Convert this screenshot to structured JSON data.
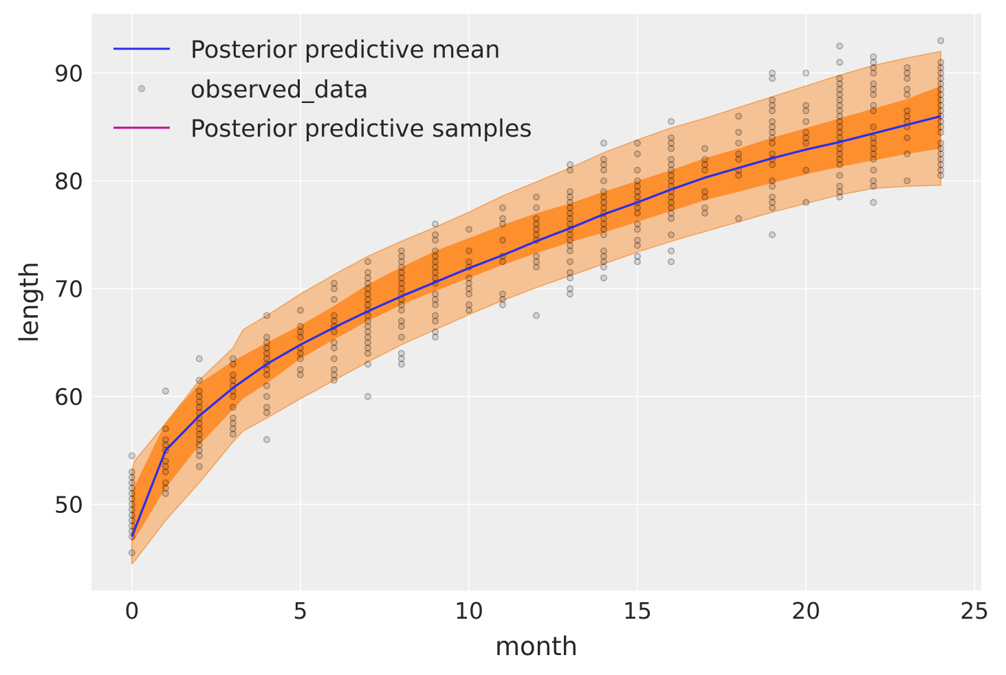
{
  "chart_data": {
    "type": "line",
    "title": "",
    "xlabel": "month",
    "ylabel": "length",
    "xlim": [
      -1.2,
      25.2
    ],
    "ylim": [
      42.0,
      95.5
    ],
    "xticks": [
      0,
      5,
      10,
      15,
      20,
      25
    ],
    "yticks": [
      50,
      60,
      70,
      80,
      90
    ],
    "grid": true,
    "legend_position": "top-left",
    "legend": {
      "mean_label": "Posterior predictive mean",
      "observed_label": "observed_data",
      "samples_label": "Posterior predictive samples"
    },
    "colors": {
      "background": "#eeeeee",
      "grid": "#ffffff",
      "mean": "#2a2eec",
      "samples": "#c10c90",
      "band_outer": "#f4bf8f",
      "band_inner": "#ff8a24",
      "observed": "#000000"
    },
    "band_x": [
      0,
      0.07,
      1,
      2,
      3,
      3.3,
      4,
      5,
      6,
      7,
      8,
      9,
      10,
      11,
      12,
      13,
      14,
      15,
      16,
      17,
      18,
      19,
      20,
      21,
      22,
      23,
      24
    ],
    "band_outer_lower": [
      44.5,
      44.7,
      48.5,
      52.0,
      55.8,
      56.8,
      58.0,
      59.8,
      61.5,
      63.2,
      64.8,
      66.2,
      67.6,
      68.9,
      70.1,
      71.2,
      72.3,
      73.4,
      74.4,
      75.3,
      76.2,
      77.1,
      77.9,
      78.7,
      79.3,
      79.5,
      79.6
    ],
    "band_inner_lower": [
      46.5,
      46.7,
      51.5,
      55.5,
      58.8,
      59.8,
      61.2,
      63.5,
      65.3,
      67.0,
      68.5,
      69.8,
      71.0,
      72.2,
      73.3,
      74.3,
      75.2,
      76.2,
      77.2,
      78.2,
      79.0,
      79.8,
      80.6,
      81.3,
      81.9,
      82.5,
      83.0
    ],
    "band_inner_upper": [
      51.0,
      51.6,
      57.6,
      61.2,
      63.3,
      63.8,
      65.0,
      66.6,
      68.4,
      70.4,
      72.0,
      73.5,
      74.7,
      75.9,
      77.0,
      77.9,
      79.0,
      80.0,
      81.0,
      82.1,
      83.0,
      84.0,
      84.9,
      85.8,
      86.7,
      87.6,
      88.8
    ],
    "band_outer_upper": [
      53.0,
      54.0,
      57.5,
      61.5,
      64.5,
      66.2,
      67.5,
      69.5,
      71.3,
      73.0,
      74.4,
      75.7,
      77.1,
      78.6,
      79.9,
      81.2,
      82.6,
      83.8,
      84.9,
      85.8,
      86.8,
      87.8,
      88.8,
      89.8,
      90.7,
      91.4,
      92.0
    ],
    "mean": {
      "x": [
        0,
        1,
        2,
        3,
        4,
        5,
        6,
        7,
        8,
        9,
        10,
        11,
        12,
        13,
        14,
        15,
        16,
        17,
        18,
        19,
        20,
        21,
        22,
        23,
        24
      ],
      "y": [
        47.0,
        55.0,
        58.2,
        60.8,
        63.0,
        64.8,
        66.4,
        67.9,
        69.3,
        70.6,
        71.9,
        73.1,
        74.4,
        75.6,
        76.9,
        78.0,
        79.2,
        80.3,
        81.2,
        82.1,
        82.9,
        83.6,
        84.4,
        85.2,
        86.0
      ]
    },
    "observed": [
      {
        "x": 0,
        "y": [
          45.5,
          47.0,
          47.5,
          48.0,
          48.5,
          49.0,
          49.5,
          50.0,
          50.5,
          51.0,
          51.5,
          52.0,
          52.5,
          53.0,
          54.5
        ]
      },
      {
        "x": 1,
        "y": [
          51.0,
          51.5,
          52.0,
          53.0,
          53.5,
          54.0,
          55.0,
          55.5,
          56.0,
          57.0,
          60.5
        ]
      },
      {
        "x": 2,
        "y": [
          53.5,
          54.5,
          55.0,
          55.5,
          56.0,
          56.5,
          57.0,
          57.5,
          58.0,
          58.5,
          59.0,
          59.5,
          60.0,
          60.5,
          61.5,
          63.5
        ]
      },
      {
        "x": 3,
        "y": [
          56.5,
          57.0,
          57.5,
          58.0,
          59.0,
          60.0,
          60.5,
          61.0,
          61.5,
          62.0,
          63.0,
          63.5
        ]
      },
      {
        "x": 4,
        "y": [
          56.0,
          58.5,
          59.0,
          60.0,
          61.0,
          62.0,
          62.5,
          63.0,
          63.5,
          64.0,
          64.5,
          65.0,
          65.5,
          67.5
        ]
      },
      {
        "x": 5,
        "y": [
          62.0,
          62.5,
          63.5,
          64.0,
          64.5,
          65.5,
          66.0,
          66.5,
          68.0
        ]
      },
      {
        "x": 6,
        "y": [
          61.5,
          62.0,
          62.5,
          63.5,
          64.5,
          65.0,
          66.0,
          66.5,
          67.0,
          67.5,
          69.0,
          70.0,
          70.5
        ]
      },
      {
        "x": 7,
        "y": [
          60.0,
          63.0,
          64.0,
          64.5,
          65.0,
          65.5,
          66.0,
          66.5,
          67.0,
          67.5,
          68.0,
          68.5,
          69.0,
          69.5,
          70.0,
          70.5,
          71.0,
          71.5,
          72.5
        ]
      },
      {
        "x": 8,
        "y": [
          63.0,
          63.5,
          64.0,
          65.5,
          66.5,
          67.0,
          68.0,
          68.5,
          69.0,
          69.5,
          70.0,
          70.5,
          71.0,
          71.5,
          72.0,
          72.5,
          73.0,
          73.5
        ]
      },
      {
        "x": 9,
        "y": [
          65.5,
          66.0,
          67.0,
          67.5,
          68.5,
          69.0,
          69.5,
          70.5,
          71.0,
          71.5,
          72.0,
          72.5,
          73.0,
          73.5,
          74.5,
          75.0,
          76.0
        ]
      },
      {
        "x": 10,
        "y": [
          68.0,
          68.5,
          69.5,
          70.0,
          70.5,
          71.0,
          72.0,
          72.5,
          73.5,
          75.5
        ]
      },
      {
        "x": 11,
        "y": [
          68.5,
          69.0,
          69.5,
          72.5,
          73.0,
          74.5,
          76.0,
          76.5,
          77.5
        ]
      },
      {
        "x": 12,
        "y": [
          67.5,
          72.0,
          72.5,
          73.0,
          74.5,
          75.0,
          75.5,
          76.0,
          76.5,
          77.5,
          78.5
        ]
      },
      {
        "x": 13,
        "y": [
          69.5,
          70.0,
          71.0,
          71.5,
          72.5,
          73.5,
          74.0,
          74.5,
          75.0,
          75.5,
          76.0,
          76.5,
          77.0,
          77.5,
          78.0,
          78.5,
          79.0,
          81.0,
          81.5
        ]
      },
      {
        "x": 14,
        "y": [
          71.0,
          72.0,
          72.5,
          73.0,
          73.5,
          75.0,
          75.5,
          76.0,
          76.5,
          77.0,
          77.5,
          78.0,
          78.5,
          79.0,
          80.0,
          81.0,
          81.5,
          82.0,
          83.5
        ]
      },
      {
        "x": 15,
        "y": [
          72.5,
          73.0,
          74.0,
          74.5,
          75.5,
          76.0,
          77.0,
          77.5,
          78.0,
          78.5,
          79.0,
          79.5,
          80.0,
          81.0,
          82.5,
          83.5
        ]
      },
      {
        "x": 16,
        "y": [
          72.5,
          73.5,
          75.0,
          76.5,
          77.0,
          77.5,
          78.0,
          78.5,
          79.0,
          79.5,
          80.0,
          80.5,
          81.0,
          81.5,
          82.0,
          83.0,
          83.5,
          84.0,
          85.5
        ]
      },
      {
        "x": 17,
        "y": [
          77.0,
          77.5,
          78.5,
          79.0,
          81.0,
          81.5,
          82.0,
          83.0
        ]
      },
      {
        "x": 18,
        "y": [
          76.5,
          80.5,
          81.0,
          82.0,
          82.5,
          83.5,
          84.5,
          86.0
        ]
      },
      {
        "x": 19,
        "y": [
          75.0,
          77.5,
          78.0,
          78.5,
          79.5,
          80.0,
          81.5,
          82.0,
          82.5,
          83.5,
          84.0,
          84.5,
          85.0,
          85.5,
          86.5,
          87.0,
          87.5,
          89.5,
          90.0
        ]
      },
      {
        "x": 20,
        "y": [
          78.0,
          81.0,
          83.5,
          84.0,
          84.5,
          85.5,
          86.5,
          87.0,
          90.0
        ]
      },
      {
        "x": 21,
        "y": [
          78.5,
          79.0,
          79.5,
          80.5,
          81.5,
          82.0,
          82.5,
          83.0,
          83.5,
          84.0,
          84.5,
          85.0,
          85.5,
          86.0,
          86.5,
          87.0,
          87.5,
          88.0,
          88.5,
          89.0,
          89.5,
          91.0,
          92.5
        ]
      },
      {
        "x": 22,
        "y": [
          78.0,
          79.5,
          80.0,
          81.0,
          82.0,
          82.5,
          83.0,
          83.5,
          84.0,
          85.0,
          86.5,
          87.0,
          88.0,
          88.5,
          89.0,
          90.0,
          90.5,
          91.0,
          91.5
        ]
      },
      {
        "x": 23,
        "y": [
          80.0,
          82.5,
          84.0,
          85.0,
          85.5,
          86.0,
          86.5,
          88.0,
          88.5,
          89.5,
          90.0,
          90.5
        ]
      },
      {
        "x": 24,
        "y": [
          80.5,
          81.0,
          81.5,
          82.0,
          82.5,
          83.0,
          83.5,
          84.5,
          85.0,
          85.5,
          86.0,
          86.5,
          87.0,
          87.5,
          88.0,
          88.5,
          89.0,
          89.5,
          90.0,
          90.5,
          91.0,
          93.0
        ]
      }
    ]
  }
}
